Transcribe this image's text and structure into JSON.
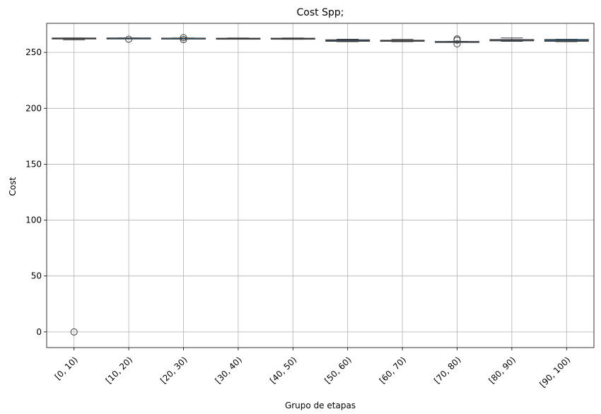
{
  "chart_data": {
    "type": "box",
    "title": "Cost Spp;",
    "xlabel": "Grupo de etapas",
    "ylabel": "Cost",
    "ylim": [
      -14,
      276
    ],
    "yticks": [
      0,
      50,
      100,
      150,
      200,
      250
    ],
    "grid": true,
    "colors": {
      "box_face": "#1f77b4",
      "box_edge": "#3d3d3d",
      "grid": "#b0b0b0"
    },
    "categories": [
      "[0, 10)",
      "[10, 20)",
      "[20, 30)",
      "[30, 40)",
      "[40, 50)",
      "[50, 60)",
      "[60, 70)",
      "[70, 80)",
      "[80, 90)",
      "[90, 100)"
    ],
    "boxes": [
      {
        "whisker_low": 261.2,
        "q1": 262.0,
        "median": 262.4,
        "q3": 262.9,
        "whisker_high": 262.9,
        "outliers": [
          0
        ]
      },
      {
        "whisker_low": 262.6,
        "q1": 262.7,
        "median": 262.8,
        "q3": 262.9,
        "whisker_high": 262.9,
        "outliers": [
          261.8
        ]
      },
      {
        "whisker_low": 262.5,
        "q1": 262.6,
        "median": 262.7,
        "q3": 262.8,
        "whisker_high": 262.9,
        "outliers": [
          263.2,
          261.5
        ]
      },
      {
        "whisker_low": 261.8,
        "q1": 262.0,
        "median": 262.3,
        "q3": 262.7,
        "whisker_high": 262.9,
        "outliers": []
      },
      {
        "whisker_low": 261.7,
        "q1": 262.0,
        "median": 262.3,
        "q3": 262.7,
        "whisker_high": 262.9,
        "outliers": []
      },
      {
        "whisker_low": 259.6,
        "q1": 259.9,
        "median": 260.6,
        "q3": 261.3,
        "whisker_high": 261.8,
        "outliers": []
      },
      {
        "whisker_low": 259.6,
        "q1": 259.9,
        "median": 260.4,
        "q3": 260.9,
        "whisker_high": 261.6,
        "outliers": []
      },
      {
        "whisker_low": 259.2,
        "q1": 259.4,
        "median": 259.6,
        "q3": 259.8,
        "whisker_high": 259.9,
        "outliers": [
          262.0,
          261.0,
          257.6
        ]
      },
      {
        "whisker_low": 259.9,
        "q1": 260.3,
        "median": 261.0,
        "q3": 261.5,
        "whisker_high": 262.9,
        "outliers": []
      },
      {
        "whisker_low": 259.6,
        "q1": 259.9,
        "median": 260.6,
        "q3": 261.6,
        "whisker_high": 261.8,
        "outliers": []
      }
    ]
  }
}
